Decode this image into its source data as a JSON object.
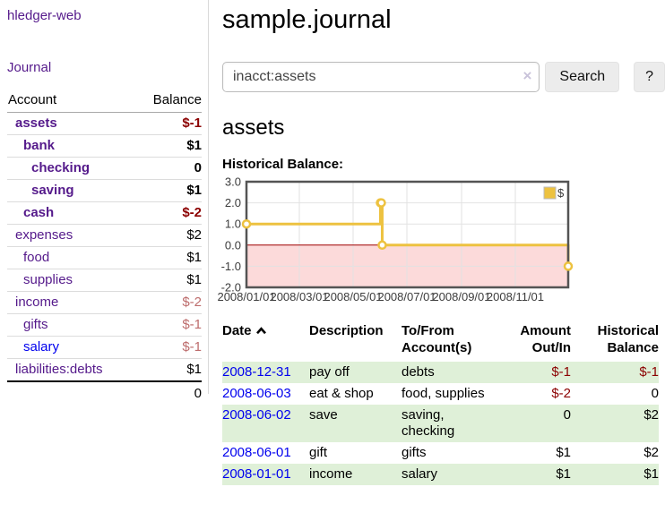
{
  "app": {
    "title": "hledger-web"
  },
  "sidebar": {
    "journal_link": "Journal",
    "table": {
      "headers": {
        "account": "Account",
        "balance": "Balance"
      },
      "rows": [
        {
          "account": "assets",
          "balance": "$-1",
          "indent": 0,
          "bold": true,
          "link": "purple",
          "balance_style": "neg-strong"
        },
        {
          "account": "bank",
          "balance": "$1",
          "indent": 1,
          "bold": true,
          "link": "purple",
          "balance_style": "pos"
        },
        {
          "account": "checking",
          "balance": "0",
          "indent": 2,
          "bold": true,
          "link": "purple",
          "balance_style": "pos"
        },
        {
          "account": "saving",
          "balance": "$1",
          "indent": 2,
          "bold": true,
          "link": "purple",
          "balance_style": "pos"
        },
        {
          "account": "cash",
          "balance": "$-2",
          "indent": 1,
          "bold": true,
          "link": "purple",
          "balance_style": "neg-strong"
        },
        {
          "account": "expenses",
          "balance": "$2",
          "indent": 0,
          "bold": false,
          "link": "purple",
          "balance_style": "pos"
        },
        {
          "account": "food",
          "balance": "$1",
          "indent": 1,
          "bold": false,
          "link": "purple",
          "balance_style": "pos"
        },
        {
          "account": "supplies",
          "balance": "$1",
          "indent": 1,
          "bold": false,
          "link": "purple",
          "balance_style": "pos"
        },
        {
          "account": "income",
          "balance": "$-2",
          "indent": 0,
          "bold": false,
          "link": "purple",
          "balance_style": "neg-soft"
        },
        {
          "account": "gifts",
          "balance": "$-1",
          "indent": 1,
          "bold": false,
          "link": "purple",
          "balance_style": "neg-soft"
        },
        {
          "account": "salary",
          "balance": "$-1",
          "indent": 1,
          "bold": false,
          "link": "blue",
          "balance_style": "neg-soft"
        },
        {
          "account": "liabilities:debts",
          "balance": "$1",
          "indent": 0,
          "bold": false,
          "link": "purple",
          "balance_style": "pos"
        }
      ],
      "total": "0"
    }
  },
  "header": {
    "title": "sample.journal"
  },
  "search": {
    "query": "inacct:assets",
    "clear_icon": "×",
    "button_label": "Search",
    "help_label": "?"
  },
  "main": {
    "account_heading": "assets",
    "chart_label": "Historical Balance:"
  },
  "chart_data": {
    "type": "line",
    "step": true,
    "title": "Historical Balance",
    "series": [
      {
        "name": "$",
        "color": "#edc240",
        "points": [
          [
            "2008-01-01",
            1
          ],
          [
            "2008-06-01",
            2
          ],
          [
            "2008-06-02",
            2
          ],
          [
            "2008-06-03",
            0
          ],
          [
            "2008-12-31",
            -1
          ]
        ]
      }
    ],
    "xlim": [
      "2008-01-01",
      "2008-12-31"
    ],
    "ylim": [
      -2,
      3
    ],
    "x_tick_labels": [
      "2008/01/01",
      "2008/03/01",
      "2008/05/01",
      "2008/07/01",
      "2008/09/01",
      "2008/11/01"
    ],
    "y_tick_labels": [
      "3.0",
      "2.0",
      "1.0",
      "0.0",
      "-1.0",
      "-2.0"
    ],
    "legend": {
      "label": "$",
      "position": "top-right"
    },
    "grid": true,
    "colors": {
      "line": "#edc240",
      "marker_fill": "#ffffff",
      "grid": "#e2e2e2",
      "border": "#545454",
      "zero_line": "#a40000",
      "negative_region": "#fcdada",
      "tick_text": "#3c3c3c",
      "legend_box_border": "#bbbbbb"
    }
  },
  "register": {
    "headers": {
      "date": "Date",
      "description": "Description",
      "account_lines": [
        "To/From",
        "Account(s)"
      ],
      "amount_lines": [
        "Amount",
        "Out/In"
      ],
      "balance_lines": [
        "Historical",
        "Balance"
      ]
    },
    "sort": {
      "column": "date",
      "direction": "ascending"
    },
    "rows": [
      {
        "date": "2008-12-31",
        "description": "pay off",
        "accounts_lines": [
          "debts"
        ],
        "amount": "$-1",
        "amount_neg": true,
        "balance": "$-1",
        "balance_neg": true,
        "shaded": true
      },
      {
        "date": "2008-06-03",
        "description": "eat & shop",
        "accounts_lines": [
          "food, supplies"
        ],
        "amount": "$-2",
        "amount_neg": true,
        "balance": "0",
        "balance_neg": false,
        "shaded": false
      },
      {
        "date": "2008-06-02",
        "description": "save",
        "accounts_lines": [
          "saving,",
          "checking"
        ],
        "amount": "0",
        "amount_neg": false,
        "balance": "$2",
        "balance_neg": false,
        "shaded": true
      },
      {
        "date": "2008-06-01",
        "description": "gift",
        "accounts_lines": [
          "gifts"
        ],
        "amount": "$1",
        "amount_neg": false,
        "balance": "$2",
        "balance_neg": false,
        "shaded": false
      },
      {
        "date": "2008-01-01",
        "description": "income",
        "accounts_lines": [
          "salary"
        ],
        "amount": "$1",
        "amount_neg": false,
        "balance": "$1",
        "balance_neg": false,
        "shaded": true
      }
    ]
  },
  "colors": {
    "link_purple": "#551a8b",
    "link_blue": "#0000ee",
    "negative_strong": "#8b0000",
    "negative_soft": "#bd6c6c",
    "row_shade_green": "#dff0d8"
  }
}
